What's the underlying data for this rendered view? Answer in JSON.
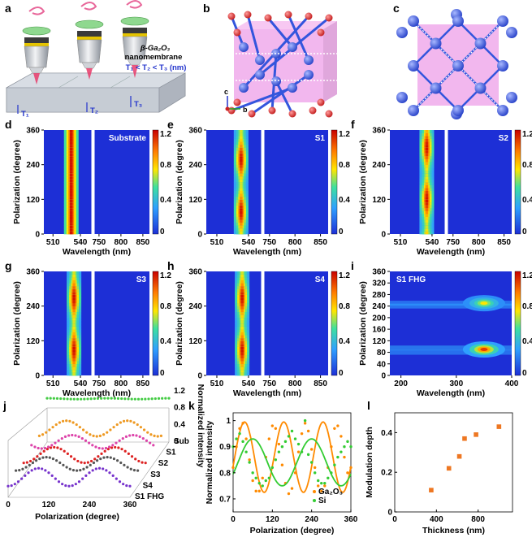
{
  "colors": {
    "heat_low": "#1d2fd6",
    "heat_mid": "#ffe600",
    "heat_high": "#c80000",
    "ga2o3_line": "#ff8a00",
    "si_line": "#33cc33",
    "scatter_square": "#ee7722",
    "membrane_pink": "#e77be0",
    "ga_atom": "#3355dd",
    "o_atom": "#dd2222"
  },
  "panels": {
    "a": {
      "label": "a",
      "caption_line1": "β-Ga₂O₃",
      "caption_line2": "nanomembrane",
      "relation": "T₁ < T₂ < T₃ (nm)",
      "t1": "T₁",
      "t2": "T₂",
      "t3": "T₃"
    },
    "b": {
      "label": "b",
      "axis_c": "c",
      "axis_b": "b"
    },
    "c": {
      "label": "c"
    },
    "d": {
      "label": "d",
      "sample": "Substrate"
    },
    "e": {
      "label": "e",
      "sample": "S1"
    },
    "f": {
      "label": "f",
      "sample": "S2"
    },
    "g": {
      "label": "g",
      "sample": "S3"
    },
    "h": {
      "label": "h",
      "sample": "S4"
    },
    "i": {
      "label": "i",
      "sample": "S1 FHG"
    },
    "j": {
      "label": "j"
    },
    "k": {
      "label": "k"
    },
    "l": {
      "label": "l"
    }
  },
  "heatmap_common": {
    "ylabel": "Polarization (degree)",
    "xlabel": "Wavelength (nm)",
    "yticks": [
      "0",
      "120",
      "240",
      "360"
    ],
    "xticks": [
      "510",
      "540",
      "750",
      "800",
      "850"
    ],
    "cbar_ticks": [
      "0",
      "0.4",
      "0.8",
      "1.2"
    ]
  },
  "heatmap_i": {
    "xticks": [
      "200",
      "300",
      "400"
    ],
    "yticks": [
      "0",
      "40",
      "80",
      "120",
      "160",
      "200",
      "240",
      "280",
      "320",
      "360"
    ]
  },
  "chart_data": [
    {
      "type": "heatmap",
      "panel": "d",
      "title": "Substrate",
      "xlabel": "Wavelength (nm)",
      "ylabel": "Polarization (degree)",
      "x_segments": [
        [
          500,
          552
        ],
        [
          740,
          865
        ]
      ],
      "ylim": [
        0,
        360
      ],
      "clim": [
        0,
        1.2
      ],
      "peak_wavelength_nm": 530,
      "polarization_modulation": "none"
    },
    {
      "type": "heatmap",
      "panel": "e",
      "title": "S1",
      "xlabel": "Wavelength (nm)",
      "ylabel": "Polarization (degree)",
      "x_segments": [
        [
          500,
          552
        ],
        [
          740,
          865
        ]
      ],
      "ylim": [
        0,
        360
      ],
      "clim": [
        0,
        1.2
      ],
      "peak_wavelength_nm": 533,
      "intensity_maxima_deg": [
        80,
        260
      ]
    },
    {
      "type": "heatmap",
      "panel": "f",
      "title": "S2",
      "xlabel": "Wavelength (nm)",
      "ylabel": "Polarization (degree)",
      "x_segments": [
        [
          500,
          552
        ],
        [
          740,
          865
        ]
      ],
      "ylim": [
        0,
        360
      ],
      "clim": [
        0,
        1.2
      ],
      "peak_wavelength_nm": 535,
      "intensity_maxima_deg": [
        120,
        300
      ]
    },
    {
      "type": "heatmap",
      "panel": "g",
      "title": "S3",
      "xlabel": "Wavelength (nm)",
      "ylabel": "Polarization (degree)",
      "x_segments": [
        [
          500,
          552
        ],
        [
          740,
          865
        ]
      ],
      "ylim": [
        0,
        360
      ],
      "clim": [
        0,
        1.2
      ],
      "peak_wavelength_nm": 533,
      "intensity_maxima_deg": [
        90,
        270
      ]
    },
    {
      "type": "heatmap",
      "panel": "h",
      "title": "S4",
      "xlabel": "Wavelength (nm)",
      "ylabel": "Polarization (degree)",
      "x_segments": [
        [
          500,
          552
        ],
        [
          740,
          865
        ]
      ],
      "ylim": [
        0,
        360
      ],
      "clim": [
        0,
        1.2
      ],
      "peak_wavelength_nm": 534,
      "intensity_maxima_deg": [
        90,
        270
      ]
    },
    {
      "type": "heatmap",
      "panel": "i",
      "title": "S1 FHG",
      "xlabel": "Wavelength (nm)",
      "ylabel": "Polarization (degree)",
      "xlim": [
        180,
        400
      ],
      "ylim": [
        0,
        360
      ],
      "clim": [
        0,
        1.2
      ],
      "hotspots": [
        {
          "wavelength_nm": 350,
          "polarization_deg": 90,
          "value": 1.2
        },
        {
          "wavelength_nm": 350,
          "polarization_deg": 250,
          "value": 0.75
        }
      ]
    },
    {
      "type": "scatter",
      "panel": "j",
      "projection": "3d",
      "xlabel": "Polarization (degree)",
      "xticks": [
        0,
        120,
        240,
        360
      ],
      "zlabel": "Normalized intensity",
      "zticks": [
        0,
        0.4,
        0.8,
        1.2
      ],
      "series": [
        {
          "name": "Sub",
          "color": "#44cc44",
          "level": 0.97,
          "amplitude": 0.02,
          "phase_deg": 0
        },
        {
          "name": "S1",
          "color": "#ee9922",
          "level": 0.55,
          "amplitude": 0.35,
          "phase_deg": 80
        },
        {
          "name": "S2",
          "color": "#dd44aa",
          "level": 0.5,
          "amplitude": 0.3,
          "phase_deg": 120
        },
        {
          "name": "S3",
          "color": "#dd2222",
          "level": 0.45,
          "amplitude": 0.35,
          "phase_deg": 90
        },
        {
          "name": "S4",
          "color": "#555555",
          "level": 0.5,
          "amplitude": 0.3,
          "phase_deg": 90
        },
        {
          "name": "S1 FHG",
          "color": "#7733cc",
          "level": 0.45,
          "amplitude": 0.4,
          "phase_deg": 90
        }
      ]
    },
    {
      "type": "scatter",
      "panel": "k",
      "xlabel": "Polarization (degree)",
      "ylabel": "Normalized intensity",
      "xlim": [
        0,
        360
      ],
      "ylim": [
        0.65,
        1.03
      ],
      "xticks": [
        0,
        120,
        240,
        360
      ],
      "yticks": [
        0.7,
        0.8,
        0.9,
        1.0
      ],
      "series": [
        {
          "name": "Ga₂O₃",
          "color": "#ff8a00",
          "fit": {
            "offset": 0.86,
            "amplitude": 0.135,
            "period_deg": 120,
            "phase_deg": 35
          },
          "x": [
            0,
            10,
            20,
            30,
            40,
            50,
            60,
            70,
            80,
            90,
            100,
            110,
            120,
            130,
            140,
            150,
            160,
            170,
            180,
            190,
            200,
            210,
            220,
            230,
            240,
            250,
            260,
            270,
            280,
            290,
            300,
            310,
            320,
            330,
            340,
            350,
            360
          ],
          "y": [
            0.82,
            0.9,
            0.97,
            0.99,
            0.93,
            0.85,
            0.77,
            0.73,
            0.73,
            0.78,
            0.86,
            0.93,
            0.98,
            0.97,
            0.91,
            0.83,
            0.76,
            0.72,
            0.74,
            0.8,
            0.88,
            0.95,
            0.99,
            0.96,
            0.89,
            0.82,
            0.75,
            0.73,
            0.75,
            0.82,
            0.9,
            0.97,
            0.98,
            0.94,
            0.86,
            0.8,
            0.82
          ]
        },
        {
          "name": "Si",
          "color": "#33cc33",
          "fit": {
            "offset": 0.84,
            "amplitude": 0.09,
            "period_deg": 180,
            "phase_deg": 60
          },
          "x": [
            0,
            10,
            20,
            30,
            40,
            50,
            60,
            70,
            80,
            90,
            100,
            110,
            120,
            130,
            140,
            150,
            160,
            170,
            180,
            190,
            200,
            210,
            220,
            230,
            240,
            250,
            260,
            270,
            280,
            290,
            300,
            310,
            320,
            330,
            340,
            350,
            360
          ],
          "y": [
            0.9,
            0.93,
            0.95,
            0.92,
            0.88,
            0.84,
            0.8,
            0.78,
            0.76,
            0.75,
            0.77,
            0.78,
            0.82,
            0.85,
            0.88,
            0.9,
            0.92,
            0.94,
            0.96,
            0.93,
            0.91,
            0.88,
            1.0,
            0.87,
            0.84,
            0.8,
            0.77,
            0.76,
            0.76,
            0.78,
            0.8,
            0.83,
            0.86,
            0.88,
            0.9,
            0.92,
            0.9
          ]
        }
      ]
    },
    {
      "type": "scatter",
      "panel": "l",
      "xlabel": "Thickness (nm)",
      "ylabel": "Modulation depth",
      "xlim": [
        0,
        1130
      ],
      "ylim": [
        0,
        0.5
      ],
      "xticks": [
        0,
        400,
        800
      ],
      "yticks": [
        0,
        0.2,
        0.4
      ],
      "x": [
        350,
        520,
        620,
        670,
        780,
        1000
      ],
      "y": [
        0.11,
        0.22,
        0.28,
        0.37,
        0.39,
        0.43
      ]
    }
  ]
}
